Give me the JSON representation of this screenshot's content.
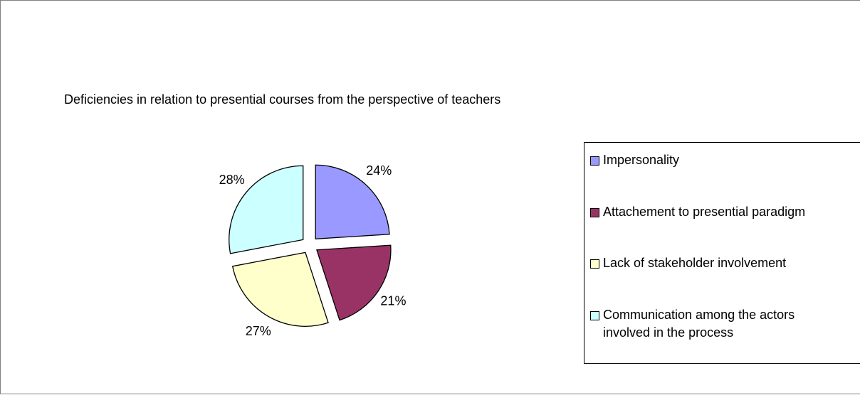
{
  "chart_data": {
    "type": "pie",
    "title": "Deficiencies in relation to presential courses from the perspective of teachers",
    "categories": [
      "Impersonality",
      "Attachement to presential paradigm",
      "Lack of stakeholder involvement",
      "Communication among the actors involved in the process"
    ],
    "values": [
      24,
      21,
      27,
      28
    ],
    "value_labels": [
      "24%",
      "21%",
      "27%",
      "28%"
    ],
    "colors": [
      "#9999ff",
      "#993366",
      "#ffffcc",
      "#ccffff"
    ],
    "legend": "right"
  }
}
